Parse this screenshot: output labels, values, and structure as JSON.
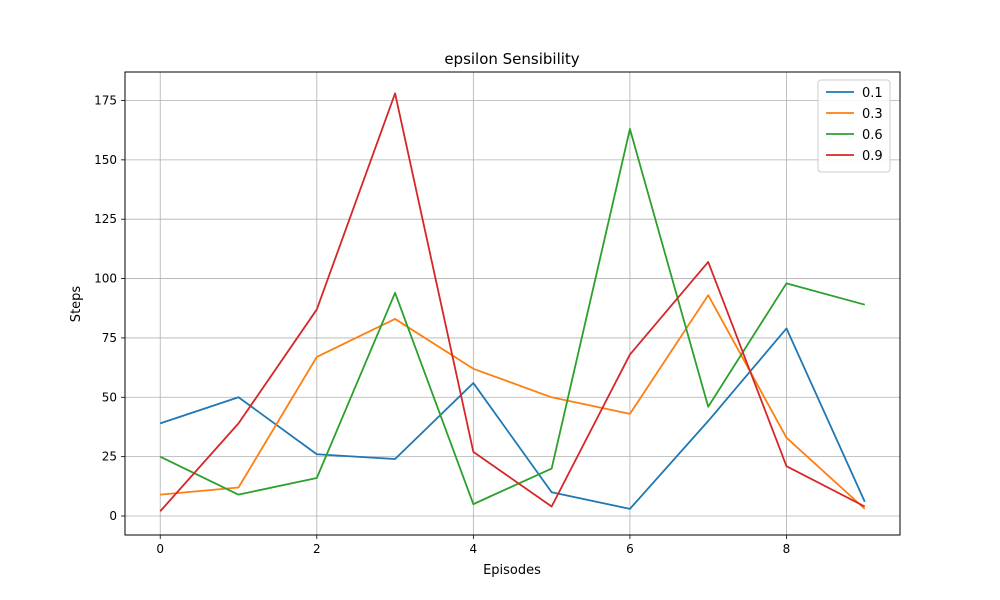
{
  "chart_data": {
    "type": "line",
    "title": "epsilon Sensibility",
    "xlabel": "Episodes",
    "ylabel": "Steps",
    "x": [
      0,
      1,
      2,
      3,
      4,
      5,
      6,
      7,
      8,
      9
    ],
    "xlim": [
      -0.45,
      9.45
    ],
    "ylim": [
      -8,
      187
    ],
    "xticks": [
      0,
      2,
      4,
      6,
      8
    ],
    "yticks": [
      0,
      25,
      50,
      75,
      100,
      125,
      150,
      175
    ],
    "grid": true,
    "legend_position": "top-right",
    "series": [
      {
        "name": "0.1",
        "color": "#1f77b4",
        "values": [
          39,
          50,
          26,
          24,
          56,
          10,
          3,
          40,
          79,
          6
        ]
      },
      {
        "name": "0.3",
        "color": "#ff7f0e",
        "values": [
          9,
          12,
          67,
          83,
          62,
          50,
          43,
          93,
          33,
          3
        ]
      },
      {
        "name": "0.6",
        "color": "#2ca02c",
        "values": [
          25,
          9,
          16,
          94,
          5,
          20,
          163,
          46,
          98,
          89
        ]
      },
      {
        "name": "0.9",
        "color": "#d62728",
        "values": [
          2,
          39,
          87,
          178,
          27,
          4,
          68,
          107,
          21,
          4
        ]
      }
    ]
  }
}
